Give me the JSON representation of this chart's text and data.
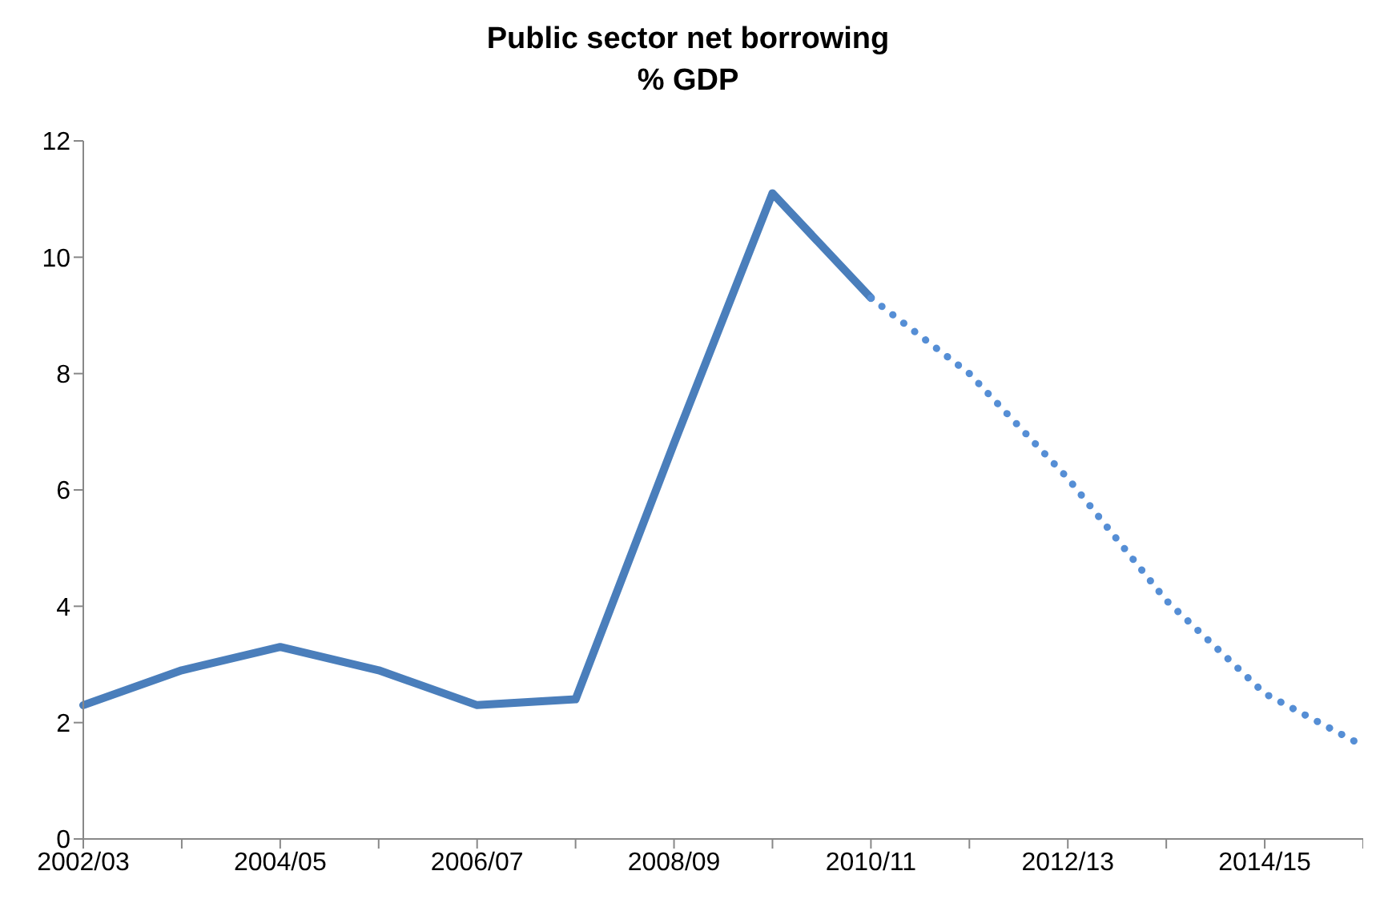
{
  "chart_data": {
    "type": "line",
    "title": "Public sector net borrowing",
    "subtitle": "% GDP",
    "categories": [
      "2002/03",
      null,
      "2004/05",
      null,
      "2006/07",
      null,
      "2008/09",
      null,
      "2010/11",
      null,
      "2012/13",
      null,
      "2014/15",
      null
    ],
    "series": [
      {
        "color": "#4a7ebb",
        "line_style": "solid",
        "values": [
          2.3,
          2.9,
          3.3,
          2.9,
          2.3,
          2.4,
          6.8,
          11.1,
          9.3,
          null,
          null,
          null,
          null,
          null
        ]
      },
      {
        "color": "#558ed5",
        "line_style": "dotted",
        "values": [
          null,
          null,
          null,
          null,
          null,
          null,
          null,
          null,
          9.3,
          8.0,
          6.2,
          4.1,
          2.5,
          1.6
        ]
      }
    ],
    "ylim": [
      0,
      12
    ],
    "yticks": [
      0,
      2,
      4,
      6,
      8,
      10,
      12
    ],
    "grid": false,
    "legend": false,
    "marker": "none"
  }
}
